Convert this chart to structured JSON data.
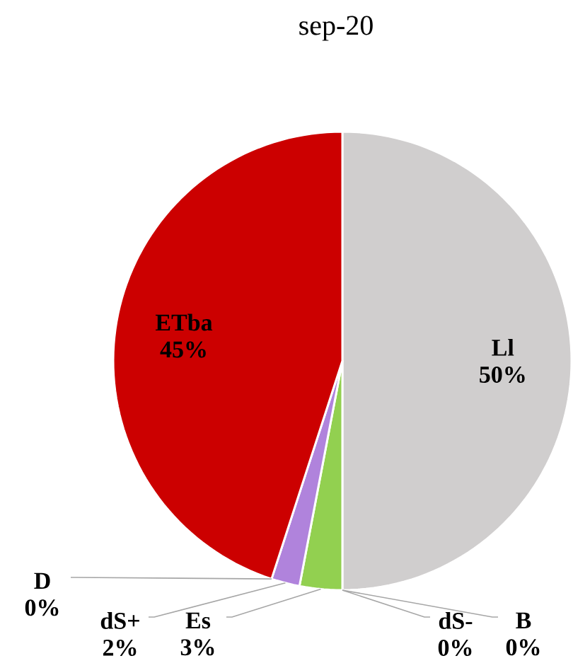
{
  "chart_data": {
    "type": "pie",
    "title": "sep-20",
    "categories": [
      "Ll",
      "B",
      "dS-",
      "Es",
      "dS+",
      "D",
      "ETba"
    ],
    "values": [
      50,
      0,
      0,
      3,
      2,
      0,
      45
    ],
    "value_labels": [
      "50%",
      "0%",
      "0%",
      "3%",
      "2%",
      "0%",
      "45%"
    ],
    "colors": [
      "#d0cece",
      "#5b9bd5",
      "#ffc000",
      "#92d050",
      "#b083dc",
      "#70ad47",
      "#cc0000"
    ]
  }
}
